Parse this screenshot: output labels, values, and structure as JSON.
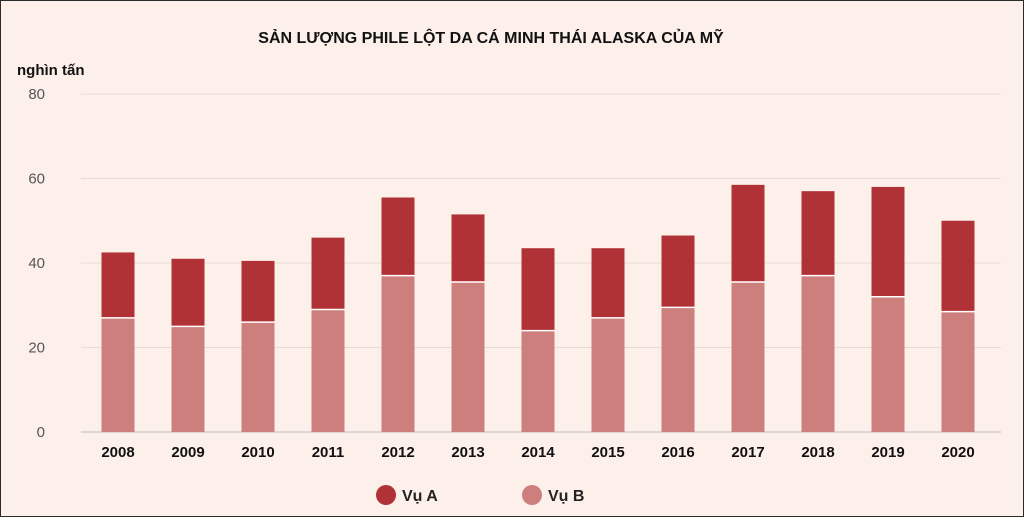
{
  "chart_data": {
    "type": "bar",
    "stacked": true,
    "title": "SẢN LƯỢNG PHILE LỘT DA CÁ MINH THÁI ALASKA CỦA MỸ",
    "ylabel": "nghìn tấn",
    "xlabel": "",
    "ylim": [
      0,
      80
    ],
    "yticks": [
      0,
      20,
      40,
      60,
      80
    ],
    "grid": true,
    "legend_position": "bottom",
    "categories": [
      "2008",
      "2009",
      "2010",
      "2011",
      "2012",
      "2013",
      "2014",
      "2015",
      "2016",
      "2017",
      "2018",
      "2019",
      "2020"
    ],
    "series": [
      {
        "name": "Vụ B",
        "color": "#cc7f7c",
        "values": [
          27,
          25,
          26,
          29,
          37,
          35.5,
          24,
          27,
          29.5,
          35.5,
          37,
          32,
          28.5
        ]
      },
      {
        "name": "Vụ A",
        "color": "#b03236",
        "values": [
          15.5,
          16,
          14.5,
          17,
          18.5,
          16,
          19.5,
          16.5,
          17,
          23,
          20,
          26,
          21.5
        ]
      }
    ],
    "legend": [
      "Vụ A",
      "Vụ B"
    ]
  }
}
